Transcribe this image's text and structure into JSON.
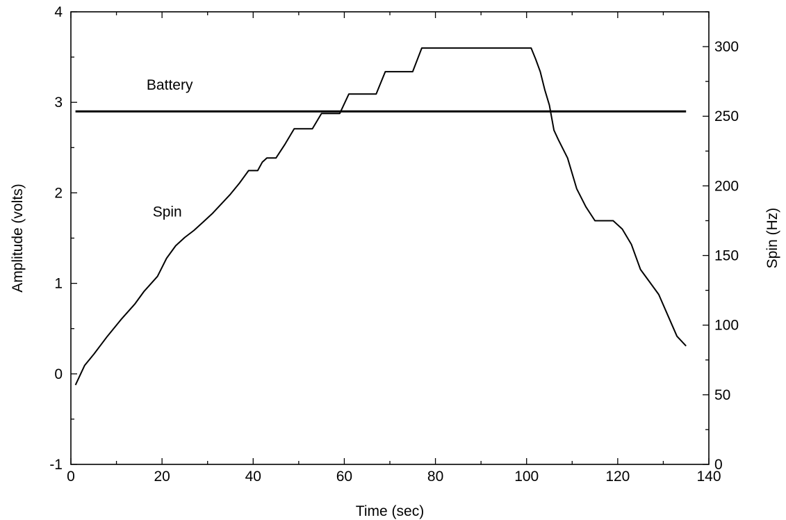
{
  "chart_data": {
    "type": "line",
    "title": "",
    "xlabel": "Time (sec)",
    "ylabel": "Amplitude (volts)",
    "y2label": "Spin (Hz)",
    "xlim": [
      0,
      140
    ],
    "ylim": [
      -1,
      4
    ],
    "y2lim": [
      0,
      325
    ],
    "xticks": [
      "0",
      "20",
      "40",
      "60",
      "80",
      "100",
      "120",
      "140"
    ],
    "yticks": [
      "-1",
      "0",
      "1",
      "2",
      "3",
      "4"
    ],
    "y2ticks": [
      "0",
      "50",
      "100",
      "150",
      "200",
      "250",
      "300"
    ],
    "grid": false,
    "annotations": [
      {
        "text": "Battery",
        "x": 25,
        "y": 3.14
      },
      {
        "text": "Spin",
        "x": 21,
        "y": 1.74
      }
    ],
    "series": [
      {
        "name": "Battery",
        "axis": "left",
        "x": [
          1,
          135
        ],
        "y": [
          2.9,
          2.9
        ]
      },
      {
        "name": "Spin",
        "axis": "right",
        "x": [
          1,
          3,
          5,
          8,
          11,
          14,
          16,
          19,
          21,
          23,
          25,
          27,
          29,
          31,
          33,
          35,
          37,
          39,
          41,
          42,
          43,
          45,
          47,
          49,
          51,
          53,
          55,
          57,
          59,
          61,
          63,
          65,
          67,
          69,
          71,
          73,
          75,
          77,
          79,
          85,
          95,
          101,
          102,
          103,
          104,
          105,
          106,
          107,
          109,
          111,
          113,
          115,
          117,
          119,
          121,
          123,
          125,
          127,
          129,
          131,
          133,
          135
        ],
        "y": [
          57,
          71,
          79,
          92,
          104,
          115,
          124,
          135,
          148,
          157,
          163,
          168,
          174,
          180,
          187,
          194,
          202,
          211,
          211,
          217,
          220,
          220,
          230,
          241,
          241,
          241,
          252,
          252,
          252,
          266,
          266,
          266,
          266,
          282,
          282,
          282,
          282,
          299,
          299,
          299,
          299,
          299,
          291,
          282,
          269,
          258,
          240,
          233,
          220,
          198,
          185,
          175,
          175,
          175,
          169,
          158,
          140,
          131,
          122,
          107,
          92,
          85
        ]
      }
    ]
  }
}
